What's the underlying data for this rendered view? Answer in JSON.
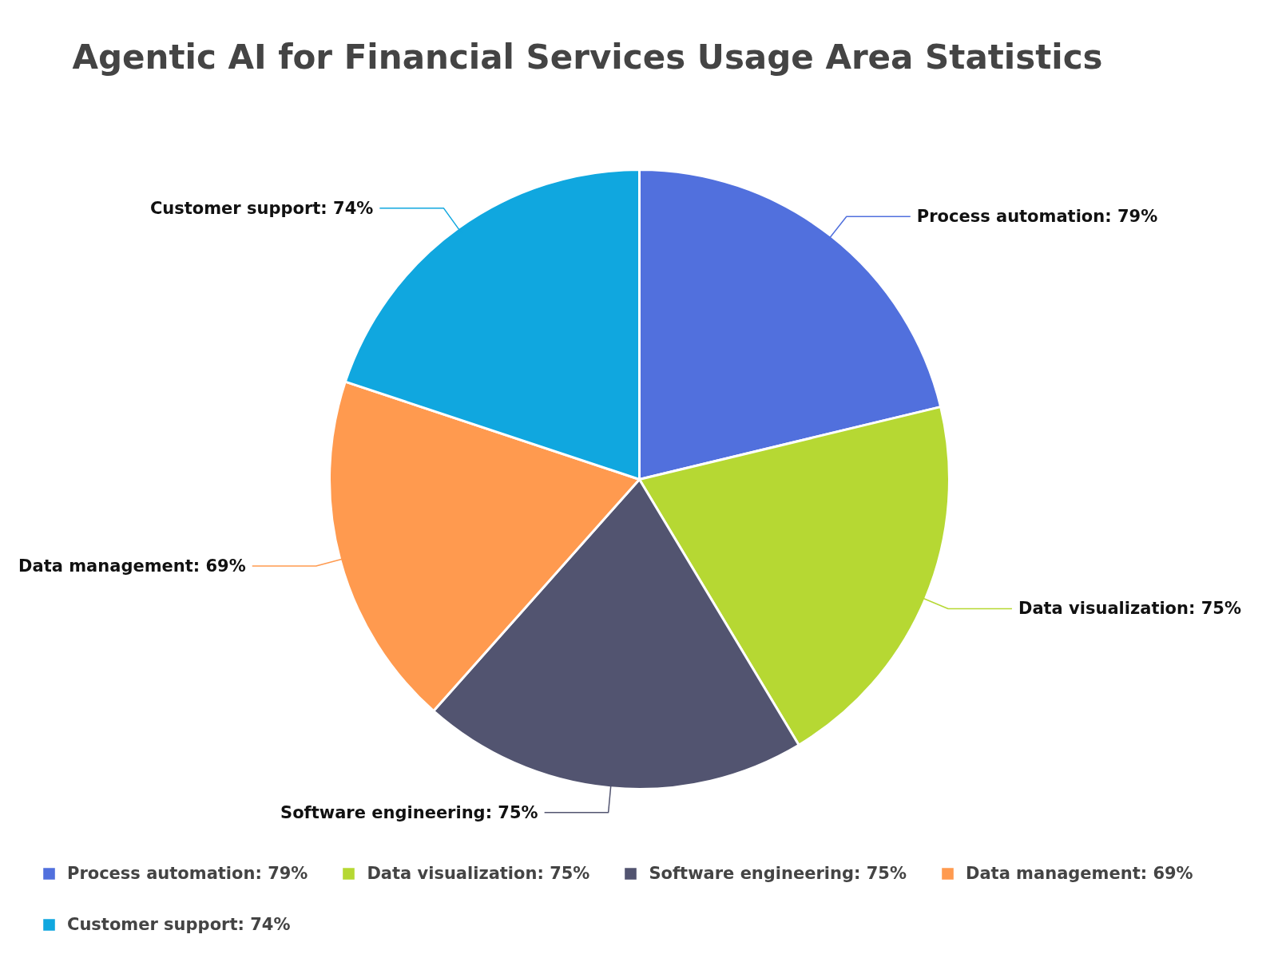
{
  "chart_data": {
    "type": "pie",
    "title": "Agentic AI for Financial Services Usage Area Statistics",
    "categories": [
      "Process automation: 79%",
      "Data visualization: 75%",
      "Software engineering: 75%",
      "Data management: 69%",
      "Customer support: 74%"
    ],
    "values": [
      79,
      75,
      75,
      69,
      74
    ],
    "colors": [
      "#5170dd",
      "#b6d833",
      "#525470",
      "#ff9a4f",
      "#10a7df"
    ],
    "legend": "bottom"
  }
}
